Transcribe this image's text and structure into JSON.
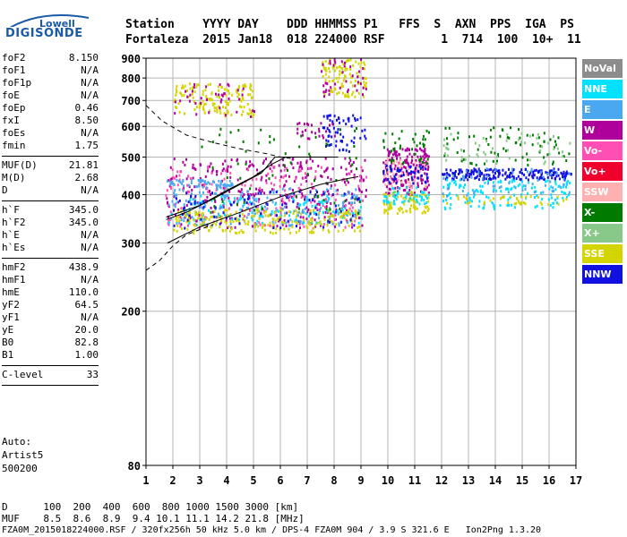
{
  "logo": {
    "small": "Lowell",
    "big": "DIGISONDE"
  },
  "header": {
    "line1": "Station    YYYY DAY    DDD HHMMSS P1   FFS  S  AXN  PPS  IGA  PS",
    "line2": "Fortaleza  2015 Jan18  018 224000 RSF        1  714  100  10+  11"
  },
  "params": [
    {
      "label": "foF2",
      "value": "8.150"
    },
    {
      "label": "foF1",
      "value": "N/A"
    },
    {
      "label": "foF1p",
      "value": "N/A"
    },
    {
      "label": "foE",
      "value": "N/A"
    },
    {
      "label": "foEp",
      "value": "0.46"
    },
    {
      "label": "fxI",
      "value": "8.50"
    },
    {
      "label": "foEs",
      "value": "N/A"
    },
    {
      "label": "fmin",
      "value": "1.75"
    },
    {
      "sep": true
    },
    {
      "label": "MUF(D)",
      "value": "21.81"
    },
    {
      "label": "M(D)",
      "value": "2.68"
    },
    {
      "label": "D",
      "value": "N/A"
    },
    {
      "sep": true
    },
    {
      "label": "h`F",
      "value": "345.0"
    },
    {
      "label": "h`F2",
      "value": "345.0"
    },
    {
      "label": "h`E",
      "value": "N/A"
    },
    {
      "label": "h`Es",
      "value": "N/A"
    },
    {
      "sep": true
    },
    {
      "label": "hmF2",
      "value": "438.9"
    },
    {
      "label": "hmF1",
      "value": "N/A"
    },
    {
      "label": "hmE",
      "value": "110.0"
    },
    {
      "label": "yF2",
      "value": "64.5"
    },
    {
      "label": "yF1",
      "value": "N/A"
    },
    {
      "label": "yE",
      "value": "20.0"
    },
    {
      "label": "B0",
      "value": "82.8"
    },
    {
      "label": "B1",
      "value": "1.00"
    },
    {
      "sep": true
    },
    {
      "label": "C-level",
      "value": "33"
    },
    {
      "sep": true
    }
  ],
  "auto": {
    "line1": "Auto:",
    "line2": "Artist5",
    "line3": "500200"
  },
  "legend": [
    {
      "label": "NoVal",
      "color": "#8c8c8c"
    },
    {
      "label": "NNE",
      "color": "#00e0ff"
    },
    {
      "label": "E",
      "color": "#4aa8f0"
    },
    {
      "label": "W",
      "color": "#b0009c"
    },
    {
      "label": "Vo-",
      "color": "#ff4fb4"
    },
    {
      "label": "Vo+",
      "color": "#f0002c"
    },
    {
      "label": "SSW",
      "color": "#ffb0b0"
    },
    {
      "label": "X-",
      "color": "#007a00"
    },
    {
      "label": "X+",
      "color": "#88c888"
    },
    {
      "label": "SSE",
      "color": "#d4d400"
    },
    {
      "label": "NNW",
      "color": "#1010e0"
    }
  ],
  "bottom": {
    "row1": "D      100  200  400  600  800 1000 1500 3000 [km]",
    "row2": "MUF    8.5  8.6  8.9  9.4 10.1 11.1 14.2 21.8 [MHz]",
    "row3": "FZA0M_2015018224000.RSF / 320fx256h 50 kHz 5.0 km / DPS-4 FZA0M 904 / 3.9 S 321.6 E   Ion2Png 1.3.20"
  },
  "chart_data": {
    "type": "scatter",
    "title": "",
    "xlabel": "",
    "ylabel": "",
    "xlim": [
      1,
      17
    ],
    "ylim": [
      80,
      900
    ],
    "y_scale": "log",
    "x_ticks": [
      1,
      2,
      3,
      4,
      5,
      6,
      7,
      8,
      9,
      10,
      11,
      12,
      13,
      14,
      15,
      16,
      17
    ],
    "y_ticks": [
      80,
      200,
      300,
      400,
      500,
      600,
      700,
      800,
      900
    ],
    "grid": true,
    "legend_position": "right",
    "clusters": [
      {
        "series": "W",
        "f": [
          1.7,
          9.2
        ],
        "h": [
          330,
          500
        ],
        "n": 320
      },
      {
        "series": "Vo-",
        "f": [
          1.7,
          9.2
        ],
        "h": [
          330,
          480
        ],
        "n": 180
      },
      {
        "series": "E",
        "f": [
          1.8,
          9.0
        ],
        "h": [
          335,
          420
        ],
        "n": 180
      },
      {
        "series": "NNE",
        "f": [
          1.8,
          9.0
        ],
        "h": [
          340,
          400
        ],
        "n": 120
      },
      {
        "series": "SSE",
        "f": [
          2.0,
          9.0
        ],
        "h": [
          320,
          370
        ],
        "n": 220
      },
      {
        "series": "NNW",
        "f": [
          2.0,
          9.0
        ],
        "h": [
          330,
          410
        ],
        "n": 90
      },
      {
        "series": "X-",
        "f": [
          3.0,
          9.0
        ],
        "h": [
          360,
          600
        ],
        "n": 70
      },
      {
        "series": "E",
        "f": [
          1.7,
          4.2
        ],
        "h": [
          420,
          440
        ],
        "n": 60
      },
      {
        "series": "SSE",
        "f": [
          2.0,
          5.0
        ],
        "h": [
          640,
          780
        ],
        "n": 140
      },
      {
        "series": "W",
        "f": [
          2.0,
          5.0
        ],
        "h": [
          640,
          780
        ],
        "n": 40
      },
      {
        "series": "SSE",
        "f": [
          7.5,
          9.2
        ],
        "h": [
          720,
          900
        ],
        "n": 100
      },
      {
        "series": "W",
        "f": [
          7.5,
          9.2
        ],
        "h": [
          720,
          900
        ],
        "n": 40
      },
      {
        "series": "NNW",
        "f": [
          7.5,
          9.2
        ],
        "h": [
          520,
          650
        ],
        "n": 60
      },
      {
        "series": "W",
        "f": [
          6.5,
          8.0
        ],
        "h": [
          560,
          620
        ],
        "n": 25
      },
      {
        "series": "W",
        "f": [
          9.8,
          11.5
        ],
        "h": [
          400,
          530
        ],
        "n": 200
      },
      {
        "series": "SSW",
        "f": [
          9.8,
          11.5
        ],
        "h": [
          420,
          500
        ],
        "n": 60
      },
      {
        "series": "SSE",
        "f": [
          9.8,
          11.5
        ],
        "h": [
          360,
          410
        ],
        "n": 80
      },
      {
        "series": "NNW",
        "f": [
          9.8,
          11.5
        ],
        "h": [
          430,
          480
        ],
        "n": 50
      },
      {
        "series": "NNE",
        "f": [
          9.8,
          11.5
        ],
        "h": [
          380,
          420
        ],
        "n": 50
      },
      {
        "series": "X-",
        "f": [
          9.8,
          11.5
        ],
        "h": [
          480,
          590
        ],
        "n": 40
      },
      {
        "series": "NNW",
        "f": [
          12.0,
          16.8
        ],
        "h": [
          440,
          470
        ],
        "n": 200
      },
      {
        "series": "NNE",
        "f": [
          12.0,
          16.8
        ],
        "h": [
          370,
          440
        ],
        "n": 140
      },
      {
        "series": "X-",
        "f": [
          12.0,
          16.8
        ],
        "h": [
          480,
          600
        ],
        "n": 70
      },
      {
        "series": "X+",
        "f": [
          12.0,
          16.8
        ],
        "h": [
          480,
          580
        ],
        "n": 50
      },
      {
        "series": "SSE",
        "f": [
          12.0,
          16.8
        ],
        "h": [
          380,
          400
        ],
        "n": 40
      },
      {
        "series": "E",
        "f": [
          12.0,
          16.8
        ],
        "h": [
          400,
          470
        ],
        "n": 60
      }
    ],
    "trace_lines": [
      {
        "name": "o-trace",
        "style": "solid",
        "points": [
          [
            1.75,
            345
          ],
          [
            2.5,
            360
          ],
          [
            3.5,
            390
          ],
          [
            4.5,
            425
          ],
          [
            5.3,
            455
          ],
          [
            5.8,
            500
          ],
          [
            7.0,
            500
          ],
          [
            8.15,
            500
          ]
        ]
      },
      {
        "name": "profile",
        "style": "solid",
        "points": [
          [
            1.8,
            300
          ],
          [
            3.0,
            330
          ],
          [
            4.5,
            360
          ],
          [
            6.0,
            395
          ],
          [
            7.5,
            425
          ],
          [
            8.5,
            440
          ],
          [
            8.9,
            445
          ]
        ]
      },
      {
        "name": "x-trace",
        "style": "solid",
        "points": [
          [
            1.75,
            350
          ],
          [
            3.0,
            375
          ],
          [
            4.0,
            410
          ],
          [
            5.0,
            445
          ],
          [
            5.7,
            480
          ],
          [
            6.2,
            500
          ]
        ]
      },
      {
        "name": "upper-boundary",
        "style": "dashed",
        "points": [
          [
            1.0,
            680
          ],
          [
            1.6,
            620
          ],
          [
            2.5,
            570
          ],
          [
            3.5,
            545
          ],
          [
            4.5,
            525
          ],
          [
            5.5,
            510
          ],
          [
            6.0,
            500
          ],
          [
            6.5,
            495
          ]
        ]
      },
      {
        "name": "lower-boundary",
        "style": "dashed",
        "points": [
          [
            1.0,
            255
          ],
          [
            1.5,
            270
          ],
          [
            2.0,
            295
          ],
          [
            2.5,
            315
          ],
          [
            3.0,
            325
          ],
          [
            3.5,
            335
          ]
        ]
      }
    ]
  }
}
